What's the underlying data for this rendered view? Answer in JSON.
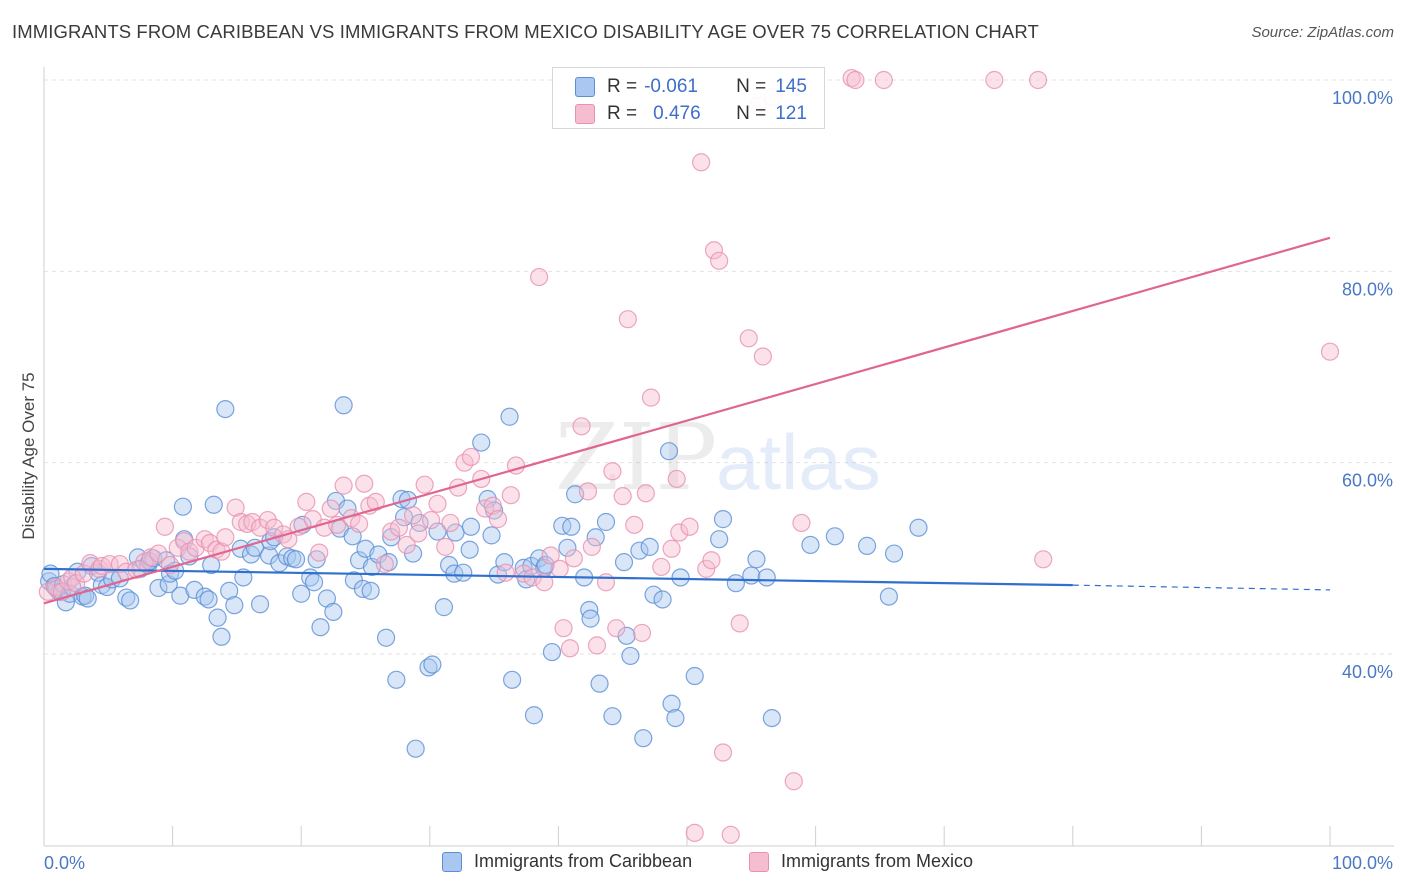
{
  "header": {
    "title": "IMMIGRANTS FROM CARIBBEAN VS IMMIGRANTS FROM MEXICO DISABILITY AGE OVER 75 CORRELATION CHART",
    "source": "Source: ZipAtlas.com"
  },
  "watermark": {
    "zip": "ZIP",
    "atlas": "atlas"
  },
  "colors": {
    "caribbean_fill": "#a9c7f0",
    "caribbean_stroke": "#5b8fd6",
    "caribbean_line": "#2f6fce",
    "mexico_fill": "#f6bcd0",
    "mexico_stroke": "#e890b0",
    "mexico_line": "#e0668f",
    "tick_label": "#4a78c4",
    "grid": "#e3e3e3"
  },
  "stats_box": {
    "rows": [
      {
        "r_label": "R =",
        "r_value": "-0.061",
        "n_label": "N =",
        "n_value": "145"
      },
      {
        "r_label": "R =",
        "r_value": "0.476",
        "n_label": "N =",
        "n_value": "121"
      }
    ]
  },
  "legend": {
    "items": [
      "Immigrants from Caribbean",
      "Immigrants from Mexico"
    ]
  },
  "chart_data": {
    "type": "scatter",
    "title": "IMMIGRANTS FROM CARIBBEAN VS IMMIGRANTS FROM MEXICO DISABILITY AGE OVER 75 CORRELATION CHART",
    "xlabel": "",
    "ylabel": "Disability Age Over 75",
    "xlim": [
      0,
      100
    ],
    "ylim": [
      18,
      102
    ],
    "x_tick_labels": [
      {
        "value": 0,
        "label": "0.0%"
      },
      {
        "value": 100,
        "label": "100.0%"
      }
    ],
    "y_tick_labels": [
      {
        "value": 40,
        "label": "40.0%"
      },
      {
        "value": 60,
        "label": "60.0%"
      },
      {
        "value": 80,
        "label": "80.0%"
      },
      {
        "value": 100,
        "label": "100.0%"
      }
    ],
    "grid": true,
    "legend_position": "bottom-center",
    "series": [
      {
        "name": "Immigrants from Caribbean",
        "trend": {
          "x_start": 0,
          "y_start": 48.9,
          "x_end": 80,
          "y_end": 47.2,
          "dashed_to_x": 100,
          "dashed_end_y": 46.7
        },
        "points": [
          [
            0.4,
            47.6
          ],
          [
            0.5,
            48.4
          ],
          [
            0.8,
            47.1
          ],
          [
            1.0,
            46.8
          ],
          [
            1.2,
            46.5
          ],
          [
            1.5,
            47.3
          ],
          [
            1.7,
            45.4
          ],
          [
            2.0,
            46.3
          ],
          [
            2.2,
            47.0
          ],
          [
            2.6,
            48.6
          ],
          [
            3.0,
            46.0
          ],
          [
            3.2,
            46.1
          ],
          [
            3.4,
            45.8
          ],
          [
            3.7,
            49.2
          ],
          [
            4.2,
            48.5
          ],
          [
            4.5,
            47.2
          ],
          [
            4.9,
            47.0
          ],
          [
            5.3,
            47.8
          ],
          [
            5.9,
            47.9
          ],
          [
            6.4,
            45.9
          ],
          [
            6.7,
            45.6
          ],
          [
            7.3,
            50.1
          ],
          [
            7.5,
            48.9
          ],
          [
            8.1,
            49.3
          ],
          [
            8.2,
            49.7
          ],
          [
            8.5,
            50.0
          ],
          [
            8.9,
            46.9
          ],
          [
            9.5,
            49.8
          ],
          [
            9.7,
            47.3
          ],
          [
            9.8,
            48.4
          ],
          [
            10.2,
            48.7
          ],
          [
            10.6,
            46.1
          ],
          [
            10.8,
            55.4
          ],
          [
            10.9,
            52.0
          ],
          [
            11.3,
            50.2
          ],
          [
            11.7,
            46.7
          ],
          [
            12.5,
            46.0
          ],
          [
            12.8,
            45.7
          ],
          [
            13.0,
            49.3
          ],
          [
            13.2,
            55.6
          ],
          [
            13.5,
            43.8
          ],
          [
            13.8,
            41.8
          ],
          [
            14.1,
            65.6
          ],
          [
            14.4,
            46.6
          ],
          [
            14.8,
            45.1
          ],
          [
            15.3,
            51.0
          ],
          [
            15.5,
            48.0
          ],
          [
            16.1,
            50.4
          ],
          [
            16.4,
            51.1
          ],
          [
            16.8,
            45.2
          ],
          [
            17.5,
            50.3
          ],
          [
            17.6,
            51.8
          ],
          [
            17.9,
            52.2
          ],
          [
            18.3,
            49.5
          ],
          [
            18.9,
            50.2
          ],
          [
            19.3,
            50.0
          ],
          [
            19.6,
            49.9
          ],
          [
            20.0,
            46.3
          ],
          [
            20.1,
            53.5
          ],
          [
            20.7,
            48.0
          ],
          [
            21.0,
            47.5
          ],
          [
            21.2,
            49.9
          ],
          [
            21.5,
            42.8
          ],
          [
            22.0,
            45.8
          ],
          [
            22.5,
            44.4
          ],
          [
            22.7,
            56.0
          ],
          [
            23.0,
            53.1
          ],
          [
            23.3,
            66.0
          ],
          [
            23.6,
            55.2
          ],
          [
            24.0,
            52.3
          ],
          [
            24.1,
            47.7
          ],
          [
            24.5,
            49.8
          ],
          [
            24.8,
            46.8
          ],
          [
            25.0,
            51.0
          ],
          [
            25.4,
            46.6
          ],
          [
            25.5,
            49.1
          ],
          [
            26.0,
            50.4
          ],
          [
            26.6,
            41.7
          ],
          [
            26.8,
            49.6
          ],
          [
            27.0,
            52.2
          ],
          [
            27.4,
            37.3
          ],
          [
            27.8,
            56.2
          ],
          [
            28.0,
            54.3
          ],
          [
            28.3,
            56.1
          ],
          [
            28.7,
            50.5
          ],
          [
            28.9,
            30.1
          ],
          [
            29.2,
            53.7
          ],
          [
            29.9,
            38.6
          ],
          [
            30.2,
            38.9
          ],
          [
            30.6,
            52.8
          ],
          [
            31.1,
            44.9
          ],
          [
            31.5,
            49.3
          ],
          [
            31.9,
            48.4
          ],
          [
            32.0,
            52.7
          ],
          [
            32.6,
            48.5
          ],
          [
            33.1,
            50.9
          ],
          [
            33.2,
            53.3
          ],
          [
            34.0,
            62.1
          ],
          [
            34.5,
            56.2
          ],
          [
            34.8,
            52.4
          ],
          [
            35.0,
            55.0
          ],
          [
            35.3,
            48.3
          ],
          [
            35.8,
            49.6
          ],
          [
            36.2,
            64.8
          ],
          [
            36.4,
            37.3
          ],
          [
            37.3,
            49.0
          ],
          [
            37.5,
            47.8
          ],
          [
            37.9,
            49.2
          ],
          [
            38.1,
            33.6
          ],
          [
            38.5,
            50.0
          ],
          [
            38.9,
            49.0
          ],
          [
            39.0,
            49.3
          ],
          [
            39.5,
            40.2
          ],
          [
            40.3,
            53.4
          ],
          [
            40.7,
            51.1
          ],
          [
            41.0,
            53.3
          ],
          [
            41.3,
            56.7
          ],
          [
            42.0,
            48.0
          ],
          [
            42.4,
            44.6
          ],
          [
            42.5,
            43.7
          ],
          [
            42.9,
            52.2
          ],
          [
            43.2,
            36.9
          ],
          [
            43.7,
            53.8
          ],
          [
            44.2,
            33.5
          ],
          [
            45.1,
            49.6
          ],
          [
            45.3,
            41.9
          ],
          [
            45.6,
            39.8
          ],
          [
            46.3,
            50.8
          ],
          [
            46.6,
            31.2
          ],
          [
            47.1,
            51.2
          ],
          [
            47.4,
            46.2
          ],
          [
            48.1,
            45.7
          ],
          [
            48.6,
            61.2
          ],
          [
            48.8,
            34.8
          ],
          [
            49.1,
            33.3
          ],
          [
            49.5,
            48.0
          ],
          [
            50.6,
            37.7
          ],
          [
            52.5,
            52.0
          ],
          [
            52.8,
            54.1
          ],
          [
            53.8,
            47.4
          ],
          [
            55.0,
            48.2
          ],
          [
            55.4,
            49.9
          ],
          [
            56.2,
            48.0
          ],
          [
            56.6,
            33.3
          ],
          [
            59.6,
            51.4
          ],
          [
            61.5,
            52.3
          ],
          [
            64.0,
            51.3
          ],
          [
            65.7,
            46.0
          ],
          [
            66.1,
            50.5
          ],
          [
            68.0,
            53.2
          ]
        ]
      },
      {
        "name": "Immigrants from Mexico",
        "trend": {
          "x_start": 0,
          "y_start": 45.3,
          "x_end": 100,
          "y_end": 83.5
        },
        "points": [
          [
            0.3,
            46.5
          ],
          [
            0.9,
            47.0
          ],
          [
            1.4,
            46.5
          ],
          [
            1.9,
            47.6
          ],
          [
            2.2,
            48.0
          ],
          [
            2.5,
            47.4
          ],
          [
            3.1,
            48.4
          ],
          [
            3.6,
            49.5
          ],
          [
            4.3,
            48.9
          ],
          [
            4.5,
            49.2
          ],
          [
            5.1,
            49.4
          ],
          [
            5.9,
            49.4
          ],
          [
            6.4,
            48.6
          ],
          [
            7.2,
            48.8
          ],
          [
            7.8,
            49.6
          ],
          [
            8.3,
            50.1
          ],
          [
            8.9,
            50.5
          ],
          [
            9.4,
            53.3
          ],
          [
            9.8,
            49.3
          ],
          [
            10.4,
            51.1
          ],
          [
            10.9,
            51.8
          ],
          [
            11.3,
            50.7
          ],
          [
            11.8,
            51.1
          ],
          [
            12.5,
            52.0
          ],
          [
            12.9,
            51.6
          ],
          [
            13.4,
            50.9
          ],
          [
            13.8,
            50.7
          ],
          [
            14.1,
            52.2
          ],
          [
            14.9,
            55.3
          ],
          [
            15.3,
            53.8
          ],
          [
            15.8,
            53.6
          ],
          [
            16.2,
            53.8
          ],
          [
            16.8,
            53.2
          ],
          [
            17.4,
            54.0
          ],
          [
            17.9,
            53.2
          ],
          [
            18.6,
            52.5
          ],
          [
            19.0,
            52.0
          ],
          [
            19.8,
            53.3
          ],
          [
            20.4,
            55.9
          ],
          [
            20.9,
            54.1
          ],
          [
            21.4,
            50.6
          ],
          [
            21.8,
            53.2
          ],
          [
            22.3,
            55.2
          ],
          [
            22.8,
            53.5
          ],
          [
            23.3,
            57.6
          ],
          [
            23.9,
            54.2
          ],
          [
            24.5,
            53.6
          ],
          [
            24.9,
            57.8
          ],
          [
            25.3,
            55.5
          ],
          [
            25.8,
            55.9
          ],
          [
            26.5,
            49.4
          ],
          [
            27.0,
            52.8
          ],
          [
            27.6,
            53.2
          ],
          [
            28.2,
            51.4
          ],
          [
            28.7,
            54.5
          ],
          [
            29.1,
            52.6
          ],
          [
            29.6,
            57.7
          ],
          [
            30.1,
            54.0
          ],
          [
            30.6,
            55.7
          ],
          [
            31.2,
            51.2
          ],
          [
            31.6,
            53.7
          ],
          [
            32.2,
            57.4
          ],
          [
            32.7,
            60.0
          ],
          [
            33.2,
            60.6
          ],
          [
            34.0,
            58.3
          ],
          [
            34.3,
            55.2
          ],
          [
            34.9,
            55.5
          ],
          [
            35.3,
            54.1
          ],
          [
            35.9,
            48.5
          ],
          [
            36.3,
            56.6
          ],
          [
            36.7,
            59.7
          ],
          [
            37.3,
            48.4
          ],
          [
            38.0,
            48.0
          ],
          [
            38.5,
            79.4
          ],
          [
            38.9,
            47.5
          ],
          [
            39.4,
            50.3
          ],
          [
            40.1,
            48.9
          ],
          [
            40.4,
            42.7
          ],
          [
            40.9,
            40.6
          ],
          [
            41.2,
            50.0
          ],
          [
            41.8,
            63.8
          ],
          [
            42.3,
            57.0
          ],
          [
            42.6,
            51.2
          ],
          [
            43.0,
            40.9
          ],
          [
            43.7,
            47.5
          ],
          [
            44.2,
            59.1
          ],
          [
            44.5,
            42.7
          ],
          [
            45.0,
            56.5
          ],
          [
            45.4,
            75.0
          ],
          [
            45.9,
            53.5
          ],
          [
            46.5,
            42.2
          ],
          [
            46.8,
            56.8
          ],
          [
            47.2,
            66.8
          ],
          [
            48.0,
            49.1
          ],
          [
            48.8,
            51.0
          ],
          [
            49.2,
            58.3
          ],
          [
            49.4,
            52.7
          ],
          [
            50.2,
            53.3
          ],
          [
            50.6,
            21.3
          ],
          [
            51.1,
            91.4
          ],
          [
            51.5,
            48.9
          ],
          [
            51.9,
            49.8
          ],
          [
            52.1,
            82.2
          ],
          [
            52.5,
            81.1
          ],
          [
            52.8,
            29.7
          ],
          [
            53.4,
            21.1
          ],
          [
            54.1,
            43.2
          ],
          [
            54.8,
            73.0
          ],
          [
            55.5,
            97.3
          ],
          [
            55.9,
            71.1
          ],
          [
            56.7,
            98.2
          ],
          [
            58.3,
            26.7
          ],
          [
            58.9,
            53.7
          ],
          [
            62.8,
            100.2
          ],
          [
            63.1,
            100.0
          ],
          [
            65.3,
            100.0
          ],
          [
            73.9,
            100.0
          ],
          [
            77.3,
            100.0
          ],
          [
            77.7,
            49.9
          ],
          [
            100.0,
            71.6
          ]
        ]
      }
    ]
  }
}
